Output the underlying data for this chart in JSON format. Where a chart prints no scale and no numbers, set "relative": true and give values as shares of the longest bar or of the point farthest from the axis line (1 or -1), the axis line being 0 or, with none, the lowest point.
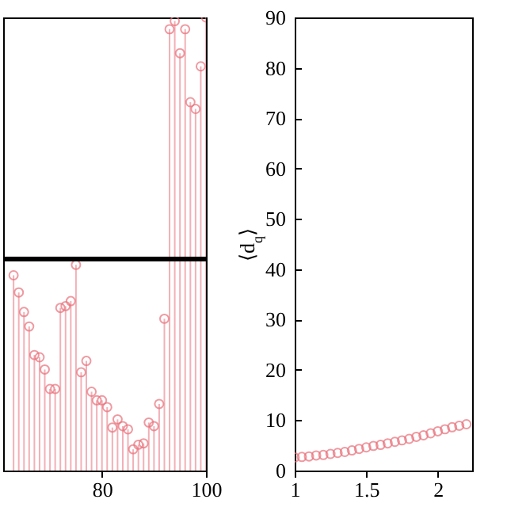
{
  "chart_data": [
    {
      "type": "lollipop",
      "relative": true,
      "marker": "circle",
      "tick_labels": "x",
      "x": [
        63,
        64,
        65,
        66,
        67,
        68,
        69,
        70,
        71,
        72,
        73,
        74,
        75,
        76,
        77,
        78,
        79,
        80,
        81,
        82,
        83,
        84,
        85,
        86,
        87,
        88,
        89,
        90,
        91,
        92,
        93,
        94,
        95,
        96,
        97,
        98,
        99,
        100
      ],
      "series": [
        {
          "color": "#e8707a",
          "values": [
            0.431,
            0.393,
            0.35,
            0.318,
            0.255,
            0.25,
            0.223,
            0.18,
            0.18,
            0.359,
            0.363,
            0.374,
            0.454,
            0.217,
            0.242,
            0.174,
            0.155,
            0.155,
            0.14,
            0.095,
            0.113,
            0.098,
            0.091,
            0.047,
            0.057,
            0.06,
            0.106,
            0.098,
            0.147,
            0.335,
            0.974,
            0.992,
            0.921,
            0.974,
            0.813,
            0.798,
            0.892,
            1
          ]
        }
      ],
      "xlim": [
        61,
        100
      ],
      "xticks": [
        80,
        100
      ],
      "ref_lines": [
        {
          "axis": "y",
          "value": 0.467,
          "color": "#000000"
        }
      ]
    },
    {
      "type": "scatter",
      "marker": "circle",
      "ylabel": "⟨d$_{q}$⟩",
      "x": [
        1,
        1.05,
        1.1,
        1.15,
        1.2,
        1.25,
        1.3,
        1.35,
        1.4,
        1.45,
        1.5,
        1.55,
        1.6,
        1.65,
        1.7,
        1.75,
        1.8,
        1.85,
        1.9,
        1.95,
        2,
        2.05,
        2.1,
        2.15,
        2.2
      ],
      "series": [
        {
          "color": "#e8707a",
          "values": [
            2.6,
            2.7,
            2.8,
            3.0,
            3.1,
            3.3,
            3.5,
            3.7,
            4.0,
            4.3,
            4.6,
            4.9,
            5.1,
            5.4,
            5.7,
            6.0,
            6.3,
            6.7,
            7.0,
            7.4,
            7.8,
            8.2,
            8.6,
            8.9,
            9.2
          ]
        }
      ],
      "xlim": [
        1,
        2.24
      ],
      "xticks": [
        1,
        1.5,
        2
      ],
      "ylim": [
        0,
        90
      ],
      "yticks": [
        0,
        10,
        20,
        30,
        40,
        50,
        60,
        70,
        80,
        90
      ]
    }
  ]
}
